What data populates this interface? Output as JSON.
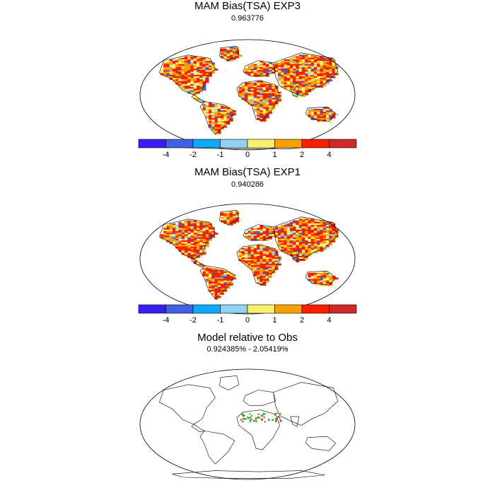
{
  "panels": [
    {
      "title": "MAM Bias(TSA) EXP3",
      "subtitle": "0.963776",
      "field_style": "warm"
    },
    {
      "title": "MAM Bias(TSA) EXP1",
      "subtitle": "0.940286",
      "field_style": "warm2"
    },
    {
      "title": "Model relative to Obs",
      "subtitle": "0.924385% - 2.05419%",
      "field_style": "points"
    }
  ],
  "colorbar": {
    "colors": [
      "#3a1ff0",
      "#4060e0",
      "#10a8f8",
      "#90d0f0",
      "#f8f070",
      "#f8a000",
      "#f82000",
      "#d02828"
    ],
    "tick_labels": [
      "-4",
      "-2",
      "-1",
      "0",
      "1",
      "2",
      "4"
    ]
  },
  "point_colors": {
    "red": "#e02020",
    "green": "#20b020"
  }
}
